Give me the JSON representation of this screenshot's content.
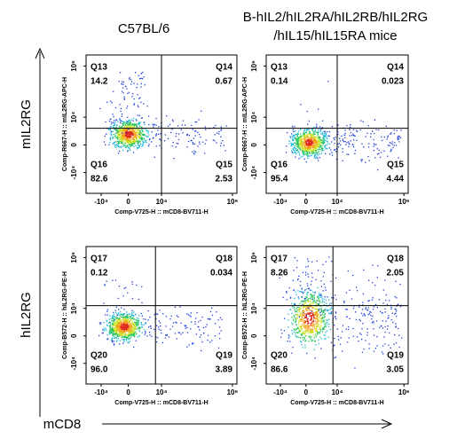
{
  "column_titles": [
    "C57BL/6",
    "B-hIL2/hIL2RA/hIL2RB/hIL2RG",
    "/hIL15/hIL15RA mice"
  ],
  "row_labels": [
    "mIL2RG",
    "hIL2RG"
  ],
  "x_axis_title": "mCD8",
  "panels": [
    {
      "x_label": "Comp-V725-H :: mCD8-BV711-H",
      "y_label": "Comp-R667-H :: mIL2RG-APC-H",
      "x_ticks": [
        "-10⁴",
        "0",
        "10⁴",
        "10⁶"
      ],
      "y_ticks": [
        "10⁶",
        "10⁴",
        "0",
        "-10⁴"
      ],
      "quadrants": [
        {
          "name": "Q13",
          "value": "14.2"
        },
        {
          "name": "Q14",
          "value": "0.67"
        },
        {
          "name": "Q15",
          "value": "2.53"
        },
        {
          "name": "Q16",
          "value": "82.6"
        }
      ]
    },
    {
      "x_label": "Comp-V725-H :: mCD8-BV711-H",
      "y_label": "Comp-R667-H :: mIL2RG-APC-H",
      "x_ticks": [
        "-10⁴",
        "0",
        "10⁴",
        "10⁶"
      ],
      "y_ticks": [
        "10⁶",
        "10⁴",
        "0",
        "-10⁴"
      ],
      "quadrants": [
        {
          "name": "Q13",
          "value": "0.14"
        },
        {
          "name": "Q14",
          "value": "0.023"
        },
        {
          "name": "Q15",
          "value": "4.44"
        },
        {
          "name": "Q16",
          "value": "95.4"
        }
      ]
    },
    {
      "x_label": "Comp-V725-H :: mCD8-BV711-H",
      "y_label": "Comp-B572-H :: hIL2RG-PE-H",
      "x_ticks": [
        "-10⁴",
        "0",
        "10⁴",
        "10⁶"
      ],
      "y_ticks": [
        "10⁶",
        "10⁴",
        "0",
        "-10⁴"
      ],
      "quadrants": [
        {
          "name": "Q17",
          "value": "0.12"
        },
        {
          "name": "Q18",
          "value": "0.034"
        },
        {
          "name": "Q19",
          "value": "3.89"
        },
        {
          "name": "Q20",
          "value": "96.0"
        }
      ]
    },
    {
      "x_label": "Comp-V725-H :: mCD8-BV711-H",
      "y_label": "Comp-B572-H :: hIL2RG-PE-H",
      "x_ticks": [
        "-10⁴",
        "0",
        "10⁴",
        "10⁶"
      ],
      "y_ticks": [
        "10⁶",
        "10⁴",
        "0",
        "-10⁴"
      ],
      "quadrants": [
        {
          "name": "Q17",
          "value": "8.26"
        },
        {
          "name": "Q18",
          "value": "2.05"
        },
        {
          "name": "Q19",
          "value": "3.05"
        },
        {
          "name": "Q20",
          "value": "86.6"
        }
      ]
    }
  ]
}
